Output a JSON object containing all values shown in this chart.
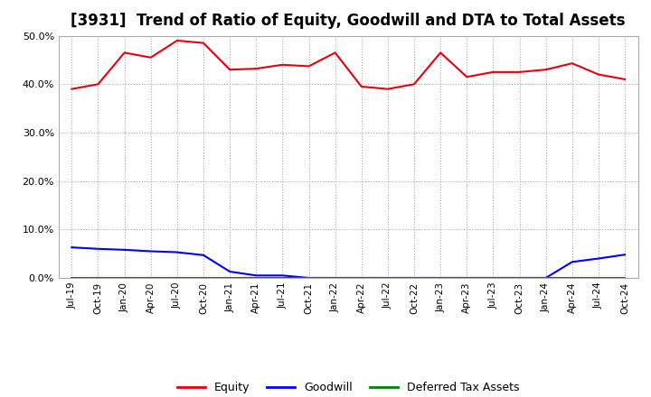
{
  "title": "[3931]  Trend of Ratio of Equity, Goodwill and DTA to Total Assets",
  "x_labels": [
    "Jul-19",
    "Oct-19",
    "Jan-20",
    "Apr-20",
    "Jul-20",
    "Oct-20",
    "Jan-21",
    "Apr-21",
    "Jul-21",
    "Oct-21",
    "Jan-22",
    "Apr-22",
    "Jul-22",
    "Oct-22",
    "Jan-23",
    "Apr-23",
    "Jul-23",
    "Oct-23",
    "Jan-24",
    "Apr-24",
    "Jul-24",
    "Oct-24"
  ],
  "equity": [
    0.39,
    0.4,
    0.465,
    0.455,
    0.49,
    0.485,
    0.43,
    0.432,
    0.44,
    0.437,
    0.465,
    0.395,
    0.39,
    0.4,
    0.465,
    0.415,
    0.425,
    0.425,
    0.43,
    0.443,
    0.42,
    0.41
  ],
  "goodwill": [
    0.063,
    0.06,
    0.058,
    0.055,
    0.053,
    0.047,
    0.013,
    0.005,
    0.005,
    0.0,
    0.0,
    0.0,
    0.0,
    0.0,
    0.0,
    0.0,
    0.0,
    0.0,
    0.0,
    0.033,
    0.04,
    0.048
  ],
  "dta": [
    0.0,
    0.0,
    0.0,
    0.0,
    0.0,
    0.0,
    0.0,
    0.0,
    0.0,
    0.0,
    0.0,
    0.0,
    0.0,
    0.0,
    0.0,
    0.0,
    0.0,
    0.0,
    0.0,
    0.0,
    0.0,
    0.0
  ],
  "equity_color": "#e8000d",
  "goodwill_color": "#0000ff",
  "dta_color": "#008000",
  "ylim": [
    0.0,
    0.5
  ],
  "yticks": [
    0.0,
    0.1,
    0.2,
    0.3,
    0.4,
    0.5
  ],
  "bg_color": "#ffffff",
  "title_fontsize": 12,
  "legend_labels": [
    "Equity",
    "Goodwill",
    "Deferred Tax Assets"
  ]
}
